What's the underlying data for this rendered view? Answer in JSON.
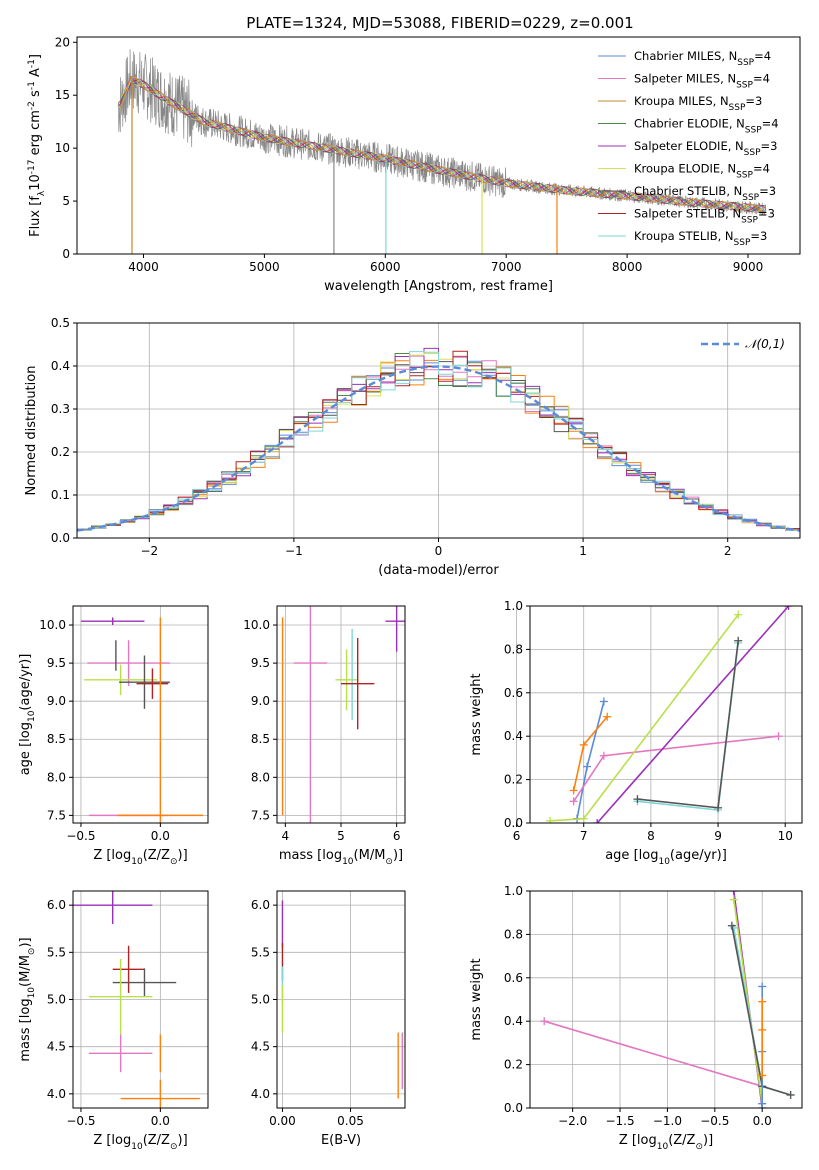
{
  "figure": {
    "title": "PLATE=1324, MJD=53088, FIBERID=0229, z=0.001"
  },
  "colors": {
    "chabrier_miles": "#5b8bd8",
    "salpeter_miles": "#e377c2",
    "kroupa_miles": "#c08a2e",
    "chabrier_elodie": "#4a8a4a",
    "salpeter_elodie": "#9b30b8",
    "kroupa_elodie": "#d8e05a",
    "chabrier_stelib": "#555555",
    "salpeter_stelib": "#b22222",
    "kroupa_stelib": "#7fd6d6",
    "orange": "#ff7f0e",
    "lime": "#b8e04a",
    "gaussian": "#5b8bd8",
    "data_spectrum": "#888888"
  },
  "chart_data": [
    {
      "id": "spectrum",
      "type": "line",
      "xlabel": "wavelength [Angstrom, rest frame]",
      "ylabel": "Flux [f",
      "ylabel_sub": "λ",
      "ylabel_rest": "10",
      "ylabel_exp": "-17",
      "ylabel_units": " erg cm",
      "ylabel_exp2": "-2",
      "ylabel_units2": " s",
      "ylabel_exp3": "-1",
      "ylabel_units3": " A",
      "ylabel_exp4": "-1",
      "ylabel_end": "]",
      "xlim": [
        3450,
        9430
      ],
      "ylim": [
        0,
        20.5
      ],
      "xticks": [
        "4000",
        "5000",
        "6000",
        "7000",
        "8000",
        "9000"
      ],
      "yticks": [
        "0",
        "5",
        "10",
        "15",
        "20"
      ],
      "legend_position": "top-right",
      "legend": [
        {
          "pre": "Chabrier MILES, N",
          "sub": "SSP",
          "post": "=4",
          "color": "#5b8bd8"
        },
        {
          "pre": "Salpeter MILES, N",
          "sub": "SSP",
          "post": "=4",
          "color": "#e377c2"
        },
        {
          "pre": "Kroupa MILES, N",
          "sub": "SSP",
          "post": "=3",
          "color": "#c08a2e"
        },
        {
          "pre": "Chabrier ELODIE, N",
          "sub": "SSP",
          "post": "=4",
          "color": "#4a8a4a"
        },
        {
          "pre": "Salpeter ELODIE, N",
          "sub": "SSP",
          "post": "=3",
          "color": "#9b30b8"
        },
        {
          "pre": "Kroupa ELODIE, N",
          "sub": "SSP",
          "post": "=4",
          "color": "#d8e05a"
        },
        {
          "pre": "Chabrier STELIB, N",
          "sub": "SSP",
          "post": "=3",
          "color": "#555555"
        },
        {
          "pre": "Salpeter STELIB, N",
          "sub": "SSP",
          "post": "=3",
          "color": "#b22222"
        },
        {
          "pre": "Kroupa STELIB, N",
          "sub": "SSP",
          "post": "=3",
          "color": "#7fd6d6"
        }
      ],
      "data_curve": {
        "x": [
          3800,
          3900,
          4000,
          4200,
          4500,
          5000,
          5500,
          6000,
          6500,
          7000,
          7500,
          8000,
          8500,
          9000,
          9150
        ],
        "y": [
          14,
          16.5,
          16,
          14.5,
          12.5,
          11,
          10,
          9,
          7.8,
          6.7,
          6.0,
          5.5,
          4.9,
          4.4,
          4.2
        ]
      },
      "dips": [
        {
          "x": 3905,
          "y": 0
        },
        {
          "x": 5575,
          "y": 0
        },
        {
          "x": 6005,
          "y": 0
        },
        {
          "x": 6800,
          "y": 0
        },
        {
          "x": 7420,
          "y": 0
        }
      ]
    },
    {
      "id": "residual_hist",
      "type": "bar",
      "xlabel": "(data-model)/error",
      "ylabel": "Normed distribution",
      "xlim": [
        -2.5,
        2.5
      ],
      "ylim": [
        0,
        0.5
      ],
      "xticks": [
        "−2",
        "−1",
        "0",
        "1",
        "2"
      ],
      "yticks": [
        "0.0",
        "0.1",
        "0.2",
        "0.3",
        "0.4",
        "0.5"
      ],
      "grid": true,
      "bin_width": 0.1,
      "legend_position": "top-right",
      "gaussian_label": "𝒩(0,1)"
    },
    {
      "id": "age_vs_Z",
      "type": "scatter",
      "xlabel": "Z [log",
      "xlabel_sub": "10",
      "xlabel_rest": "(Z/Z",
      "xlabel_sub2": "⊙",
      "xlabel_end": ")]",
      "ylabel": "age  [log",
      "ylabel_sub": "10",
      "ylabel_rest": "(age/yr)]",
      "xlim": [
        -0.55,
        0.3
      ],
      "ylim": [
        7.4,
        10.25
      ],
      "xticks": [
        "−0.5",
        "0.0"
      ],
      "yticks": [
        "7.5",
        "8.0",
        "8.5",
        "9.0",
        "9.5",
        "10.0"
      ],
      "points": [
        {
          "x": -0.3,
          "y": 10.05,
          "xerr": 0.2,
          "yerr": 0.05,
          "color": "#9b30b8"
        },
        {
          "x": 0.0,
          "y": 10.05,
          "xerr": 0.0,
          "yerr": 0.05,
          "color": "#ff7f0e"
        },
        {
          "x": -0.2,
          "y": 9.5,
          "xerr": 0.26,
          "yerr": 0.3,
          "color": "#e377c2"
        },
        {
          "x": -0.25,
          "y": 9.28,
          "xerr": 0.23,
          "yerr": 0.2,
          "color": "#b8e04a"
        },
        {
          "x": -0.1,
          "y": 9.25,
          "xerr": 0.16,
          "yerr": 0.35,
          "color": "#555555"
        },
        {
          "x": -0.05,
          "y": 9.23,
          "xerr": 0.1,
          "yerr": 0.2,
          "color": "#b22222"
        },
        {
          "x": -0.2,
          "y": 7.5,
          "xerr": 0.25,
          "yerr": 0.0,
          "color": "#e377c2"
        },
        {
          "x": 0.0,
          "y": 7.5,
          "xerr": 0.27,
          "yerr": 2.5,
          "color": "#ff7f0e"
        },
        {
          "x": -0.28,
          "y": 9.6,
          "xerr": 0.0,
          "yerr": 0.2,
          "color": "#555555"
        }
      ]
    },
    {
      "id": "age_vs_mass",
      "type": "scatter",
      "xlabel": "mass [log",
      "xlabel_sub": "10",
      "xlabel_rest": "(M/M",
      "xlabel_sub2": "⊙",
      "xlabel_end": ")]",
      "xlim": [
        3.85,
        6.15
      ],
      "ylim": [
        7.4,
        10.25
      ],
      "xticks": [
        "4",
        "5",
        "6"
      ],
      "yticks": [
        "7.5",
        "8.0",
        "8.5",
        "9.0",
        "9.5",
        "10.0"
      ],
      "points": [
        {
          "x": 6.0,
          "y": 10.05,
          "xerr": 0.2,
          "yerr": 0.4,
          "color": "#9b30b8"
        },
        {
          "x": 4.45,
          "y": 9.5,
          "xerr": 0.3,
          "yerr": 2.1,
          "color": "#e377c2"
        },
        {
          "x": 5.1,
          "y": 9.28,
          "xerr": 0.2,
          "yerr": 0.4,
          "color": "#b8e04a"
        },
        {
          "x": 5.2,
          "y": 9.35,
          "xerr": 0.0,
          "yerr": 0.6,
          "color": "#7fd6d6"
        },
        {
          "x": 5.3,
          "y": 9.23,
          "xerr": 0.3,
          "yerr": 0.6,
          "color": "#b22222"
        },
        {
          "x": 3.95,
          "y": 8.8,
          "xerr": 0.0,
          "yerr": 1.3,
          "color": "#ff7f0e"
        }
      ]
    },
    {
      "id": "mass_weight_vs_age",
      "type": "line",
      "xlabel": "age  [log",
      "xlabel_sub": "10",
      "xlabel_rest": "(age/yr)]",
      "ylabel": "mass weight",
      "xlim": [
        6.2,
        10.25
      ],
      "ylim": [
        0,
        1.0
      ],
      "xticks": [
        "6",
        "7",
        "8",
        "9",
        "10"
      ],
      "yticks": [
        "0.0",
        "0.2",
        "0.4",
        "0.6",
        "0.8",
        "1.0"
      ],
      "series": [
        {
          "color": "#5b8bd8",
          "x": [
            6.9,
            7.05,
            7.3
          ],
          "y": [
            0.02,
            0.26,
            0.56
          ]
        },
        {
          "color": "#ff7f0e",
          "x": [
            6.85,
            7.0,
            7.35
          ],
          "y": [
            0.15,
            0.36,
            0.49
          ]
        },
        {
          "color": "#e377c2",
          "x": [
            6.85,
            7.3,
            9.9
          ],
          "y": [
            0.1,
            0.31,
            0.4
          ]
        },
        {
          "color": "#9b30b8",
          "x": [
            7.2,
            10.05
          ],
          "y": [
            0.0,
            1.0
          ]
        },
        {
          "color": "#b8e04a",
          "x": [
            6.5,
            7.0,
            9.3
          ],
          "y": [
            0.01,
            0.02,
            0.96
          ]
        },
        {
          "color": "#7fd6d6",
          "x": [
            7.8,
            9.0,
            9.3
          ],
          "y": [
            0.1,
            0.06,
            0.83
          ]
        },
        {
          "color": "#555555",
          "x": [
            7.8,
            9.0,
            9.3
          ],
          "y": [
            0.11,
            0.07,
            0.84
          ]
        }
      ]
    },
    {
      "id": "mass_vs_Z",
      "type": "scatter",
      "xlabel": "Z [log",
      "xlabel_sub": "10",
      "xlabel_rest": "(Z/Z",
      "xlabel_sub2": "⊙",
      "xlabel_end": ")]",
      "ylabel": "mass [log",
      "ylabel_sub": "10",
      "ylabel_rest": "(M/M",
      "ylabel_sub2": "⊙",
      "ylabel_end": ")]",
      "xlim": [
        -0.55,
        0.3
      ],
      "ylim": [
        3.85,
        6.15
      ],
      "xticks": [
        "−0.5",
        "0.0"
      ],
      "yticks": [
        "4.0",
        "4.5",
        "5.0",
        "5.5",
        "6.0"
      ],
      "points": [
        {
          "x": -0.3,
          "y": 6.0,
          "xerr": 0.25,
          "yerr": 0.2,
          "color": "#9b30b8"
        },
        {
          "x": -0.2,
          "y": 5.32,
          "xerr": 0.1,
          "yerr": 0.25,
          "color": "#b22222"
        },
        {
          "x": -0.1,
          "y": 5.18,
          "xerr": 0.2,
          "yerr": 0.15,
          "color": "#555555"
        },
        {
          "x": -0.25,
          "y": 5.03,
          "xerr": 0.2,
          "yerr": 0.4,
          "color": "#b8e04a"
        },
        {
          "x": -0.25,
          "y": 4.43,
          "xerr": 0.2,
          "yerr": 0.2,
          "color": "#e377c2"
        },
        {
          "x": 0.0,
          "y": 4.43,
          "xerr": 0.0,
          "yerr": 0.2,
          "color": "#ff7f0e"
        },
        {
          "x": 0.0,
          "y": 3.95,
          "xerr": 0.25,
          "yerr": 0.2,
          "color": "#ff7f0e"
        }
      ]
    },
    {
      "id": "mass_vs_ebv",
      "type": "scatter",
      "xlabel": "E(B-V)",
      "xlim": [
        -0.004,
        0.09
      ],
      "ylim": [
        3.85,
        6.15
      ],
      "xticks": [
        "0.00",
        "0.05"
      ],
      "yticks": [
        "4.0",
        "4.5",
        "5.0",
        "5.5",
        "6.0"
      ],
      "points": [
        {
          "x": 0.0,
          "y": 5.8,
          "xerr": 0.0,
          "yerr": 0.25,
          "color": "#9b30b8"
        },
        {
          "x": 0.0,
          "y": 5.4,
          "xerr": 0.0,
          "yerr": 0.2,
          "color": "#b22222"
        },
        {
          "x": 0.0,
          "y": 5.15,
          "xerr": 0.0,
          "yerr": 0.2,
          "color": "#7fd6d6"
        },
        {
          "x": 0.0,
          "y": 4.9,
          "xerr": 0.0,
          "yerr": 0.25,
          "color": "#b8e04a"
        },
        {
          "x": 0.085,
          "y": 4.3,
          "xerr": 0.0,
          "yerr": 0.35,
          "color": "#ff7f0e"
        },
        {
          "x": 0.088,
          "y": 4.35,
          "xerr": 0.0,
          "yerr": 0.3,
          "color": "#e377c2"
        }
      ]
    },
    {
      "id": "mass_weight_vs_Z",
      "type": "line",
      "xlabel": "Z [log",
      "xlabel_sub": "10",
      "xlabel_rest": "(Z/Z",
      "xlabel_sub2": "⊙",
      "xlabel_end": ")]",
      "ylabel": "mass weight",
      "xlim": [
        -2.45,
        0.42
      ],
      "ylim": [
        0,
        1.0
      ],
      "xticks": [
        "−2.0",
        "−1.5",
        "−1.0",
        "−0.5",
        "0.0"
      ],
      "yticks": [
        "0.0",
        "0.2",
        "0.4",
        "0.6",
        "0.8",
        "1.0"
      ],
      "series": [
        {
          "color": "#e377c2",
          "x": [
            -2.3,
            0.0
          ],
          "y": [
            0.4,
            0.1
          ]
        },
        {
          "color": "#9b30b8",
          "x": [
            -0.3,
            0.0
          ],
          "y": [
            1.0,
            0.0
          ]
        },
        {
          "color": "#b8e04a",
          "x": [
            -0.3,
            0.0
          ],
          "y": [
            0.96,
            0.02
          ]
        },
        {
          "color": "#7fd6d6",
          "x": [
            -0.3,
            0.0,
            0.3
          ],
          "y": [
            0.83,
            0.1,
            0.06
          ]
        },
        {
          "color": "#555555",
          "x": [
            -0.32,
            0.0,
            0.3
          ],
          "y": [
            0.84,
            0.1,
            0.06
          ]
        },
        {
          "color": "#5b8bd8",
          "x": [
            0.0,
            0.0,
            0.0
          ],
          "y": [
            0.02,
            0.26,
            0.56
          ]
        },
        {
          "color": "#ff7f0e",
          "x": [
            0.0,
            0.0,
            0.0
          ],
          "y": [
            0.15,
            0.36,
            0.49
          ]
        }
      ]
    }
  ]
}
